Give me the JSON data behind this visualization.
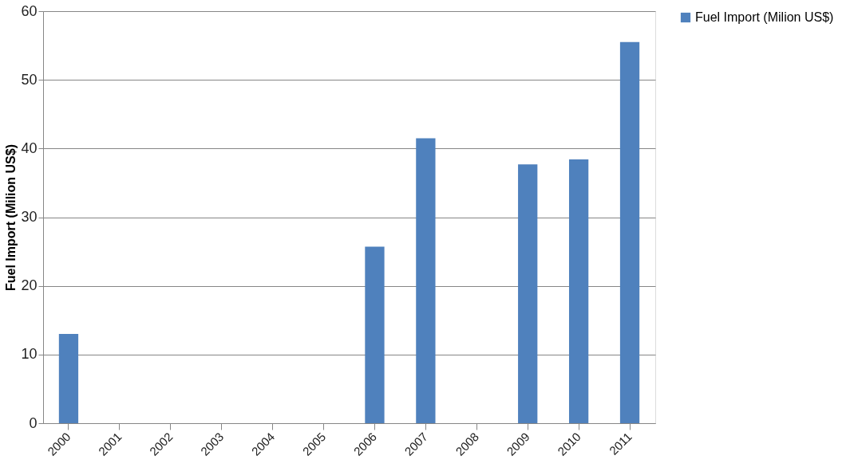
{
  "chart_data": {
    "type": "bar",
    "ylabel": "Fuel Import (Milion US$)",
    "categories": [
      "2000",
      "2001",
      "2002",
      "2003",
      "2004",
      "2005",
      "2006",
      "2007",
      "2008",
      "2009",
      "2010",
      "2011"
    ],
    "series": [
      {
        "name": "Fuel Import (Milion US$)",
        "color": "#4f81bd",
        "values": [
          13,
          null,
          null,
          null,
          null,
          null,
          25.7,
          41.5,
          null,
          37.7,
          38.4,
          55.5
        ]
      }
    ],
    "ylim": [
      0,
      60
    ],
    "yticks": [
      0,
      10,
      20,
      30,
      40,
      50,
      60
    ],
    "grid": "y",
    "legend": "right"
  }
}
